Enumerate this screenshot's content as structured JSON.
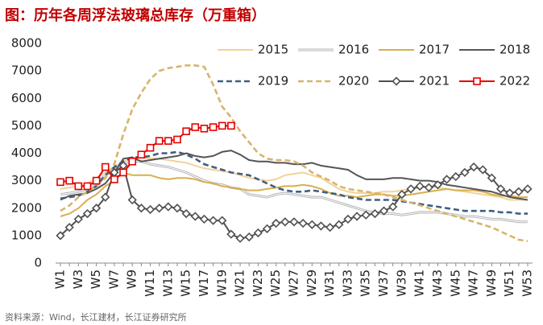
{
  "chart_data": {
    "type": "line",
    "title": "图：历年各周浮法玻璃总库存（万重箱）",
    "source": "资料来源：Wind，长江建材，长江证券研究所",
    "categories": [
      "W1",
      null,
      "W3",
      null,
      "W5",
      null,
      "W7",
      null,
      "W9",
      null,
      "W11",
      null,
      "W13",
      null,
      "W15",
      null,
      "W17",
      null,
      "W19",
      null,
      "W21",
      null,
      "W23",
      null,
      "W25",
      null,
      "W27",
      null,
      "W29",
      null,
      "W31",
      null,
      "W33",
      null,
      "W35",
      null,
      "W37",
      null,
      "W39",
      null,
      "W41",
      null,
      "W43",
      null,
      "W45",
      null,
      "W47",
      null,
      "W49",
      null,
      "W51",
      null,
      "W53"
    ],
    "ylim": [
      0,
      8000
    ],
    "yticks": [
      0,
      1000,
      2000,
      3000,
      4000,
      5000,
      6000,
      7000,
      8000
    ],
    "grid": false,
    "legend": "upper right",
    "series": [
      {
        "name": "2015",
        "color": "#f2d398",
        "style": "solid",
        "values": [
          2700,
          2750,
          2800,
          2900,
          3100,
          3300,
          3500,
          3700,
          3800,
          3850,
          3800,
          3800,
          3750,
          3700,
          3650,
          3550,
          3450,
          3400,
          3350,
          3300,
          3200,
          3100,
          3050,
          3000,
          3050,
          3200,
          3250,
          3300,
          3200,
          3100,
          2900,
          2700,
          2600,
          2550,
          2550,
          2550,
          2600,
          2600,
          2650,
          2700,
          2750,
          2800,
          2750,
          2700,
          2650,
          2600,
          2550,
          2500,
          2450,
          2400,
          2300,
          2300,
          2300
        ]
      },
      {
        "name": "2016",
        "color": "#b4b4b4",
        "style": "double",
        "values": [
          2500,
          2550,
          2600,
          2700,
          2900,
          3200,
          3400,
          3600,
          3700,
          3700,
          3600,
          3550,
          3500,
          3400,
          3300,
          3150,
          3000,
          2900,
          2850,
          2750,
          2700,
          2500,
          2450,
          2400,
          2500,
          2550,
          2500,
          2450,
          2400,
          2400,
          2300,
          2200,
          2100,
          2000,
          1900,
          1850,
          1800,
          1800,
          1750,
          1800,
          1850,
          1850,
          1850,
          1800,
          1750,
          1700,
          1700,
          1650,
          1600,
          1600,
          1550,
          1500,
          1500
        ]
      },
      {
        "name": "2017",
        "color": "#d9af4f",
        "style": "solid",
        "values": [
          1700,
          1800,
          2000,
          2300,
          2500,
          2800,
          3000,
          3300,
          3200,
          3200,
          3200,
          3100,
          3050,
          3100,
          3100,
          3050,
          2950,
          2900,
          2800,
          2750,
          2700,
          2650,
          2650,
          2700,
          2750,
          2800,
          2800,
          2850,
          2800,
          2700,
          2550,
          2450,
          2450,
          2400,
          2450,
          2500,
          2500,
          2450,
          2450,
          2500,
          2550,
          2600,
          2650,
          2700,
          2650,
          2650,
          2650,
          2600,
          2500,
          2450,
          2450,
          2400,
          2400
        ]
      },
      {
        "name": "2018",
        "color": "#555555",
        "style": "solid",
        "values": [
          2300,
          2450,
          2500,
          2550,
          2700,
          2900,
          3300,
          3800,
          3850,
          3700,
          3750,
          3800,
          3850,
          3900,
          4000,
          3900,
          3850,
          3900,
          4050,
          4100,
          3950,
          3750,
          3700,
          3700,
          3650,
          3650,
          3600,
          3600,
          3650,
          3550,
          3500,
          3450,
          3400,
          3200,
          3050,
          3050,
          3050,
          3100,
          3100,
          3050,
          3000,
          3000,
          2950,
          2850,
          2800,
          2750,
          2700,
          2650,
          2600,
          2500,
          2400,
          2350,
          2300
        ]
      },
      {
        "name": "2019",
        "color": "#3f5f80",
        "style": "dashed",
        "values": [
          2350,
          2400,
          2450,
          2600,
          2800,
          3200,
          3500,
          3700,
          3850,
          3850,
          3900,
          4000,
          4000,
          4050,
          3950,
          3800,
          3600,
          3500,
          3400,
          3300,
          3250,
          3200,
          3050,
          2900,
          2750,
          2650,
          2600,
          2600,
          2650,
          2600,
          2550,
          2500,
          2400,
          2350,
          2300,
          2300,
          2300,
          2300,
          2250,
          2200,
          2150,
          2100,
          2050,
          2000,
          1950,
          1900,
          1900,
          1900,
          1900,
          1850,
          1850,
          1800,
          1800
        ]
      },
      {
        "name": "2020",
        "color": "#d8b46a",
        "style": "dashed",
        "values": [
          1900,
          2100,
          2400,
          2600,
          2800,
          3100,
          3600,
          4700,
          5600,
          6200,
          6700,
          7000,
          7100,
          7150,
          7200,
          7200,
          7150,
          6500,
          5700,
          5300,
          4800,
          4400,
          4000,
          3800,
          3750,
          3750,
          3700,
          3550,
          3300,
          3150,
          3000,
          2800,
          2700,
          2650,
          2600,
          2550,
          2500,
          2400,
          2300,
          2200,
          2100,
          2000,
          1900,
          1800,
          1700,
          1600,
          1500,
          1400,
          1300,
          1150,
          1000,
          850,
          800
        ]
      },
      {
        "name": "2021",
        "color": "#505050",
        "style": "solid",
        "marker": "diamond",
        "values": [
          1000,
          1300,
          1600,
          1800,
          2000,
          2400,
          3300,
          3550,
          2300,
          2000,
          1950,
          2000,
          2050,
          2000,
          1800,
          1700,
          1600,
          1550,
          1550,
          1050,
          900,
          950,
          1100,
          1250,
          1450,
          1500,
          1500,
          1450,
          1400,
          1350,
          1300,
          1400,
          1600,
          1700,
          1750,
          1800,
          1900,
          2050,
          2500,
          2700,
          2800,
          2750,
          2850,
          3050,
          3150,
          3300,
          3500,
          3400,
          3100,
          2700,
          2550,
          2600,
          2700
        ]
      },
      {
        "name": "2022",
        "color": "#e60000",
        "style": "solid",
        "marker": "square",
        "values": [
          2950,
          3000,
          2800,
          2800,
          3000,
          3500,
          3050,
          3300,
          3700,
          3950,
          4200,
          4450,
          4450,
          4500,
          4800,
          4950,
          4900,
          4950,
          5000,
          5000,
          null,
          null,
          null,
          null,
          null,
          null,
          null,
          null,
          null,
          null,
          null,
          null,
          null,
          null,
          null,
          null,
          null,
          null,
          null,
          null,
          null,
          null,
          null,
          null,
          null,
          null,
          null,
          null,
          null,
          null,
          null,
          null,
          null
        ]
      }
    ]
  }
}
